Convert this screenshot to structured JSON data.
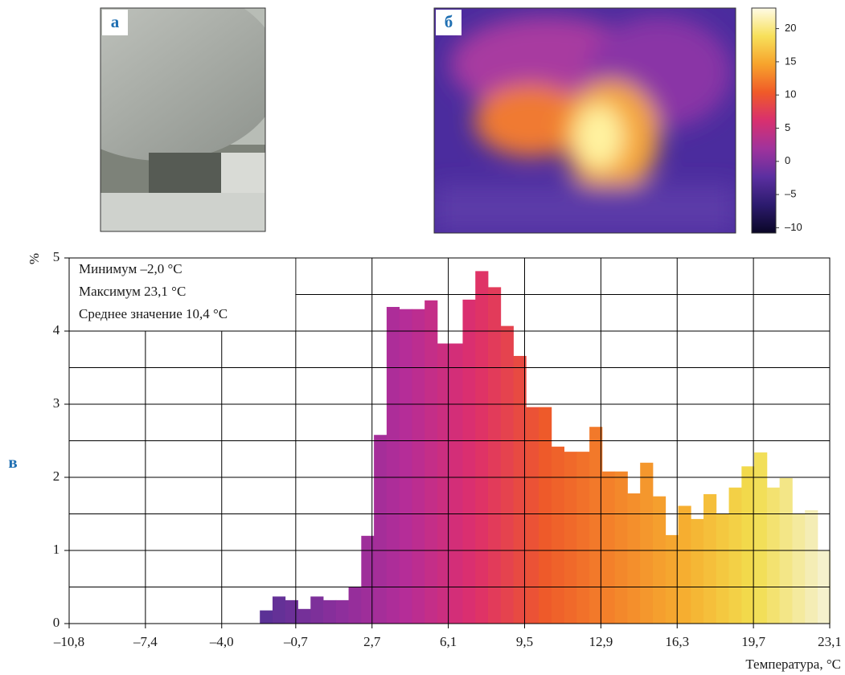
{
  "panel_labels": [
    "а",
    "б",
    "в"
  ],
  "colorbar": {
    "lim": [
      -10.8,
      23.1
    ],
    "ticks": [
      20,
      15,
      10,
      5,
      0,
      {
        "value": -5,
        "label": "–5"
      },
      {
        "value": -10,
        "label": "–10"
      }
    ],
    "colors": [
      "#0a0626",
      "#2c1b6e",
      "#5b2fa0",
      "#a0339c",
      "#d8306f",
      "#f05a28",
      "#f7a32c",
      "#f7e05a",
      "#fffbe6"
    ]
  },
  "chart_data": {
    "type": "histogram",
    "ylabel": "%",
    "xlabel": "Температура, °C",
    "annotations": [
      "Минимум –2,0 °C",
      "Максимум 23,1 °C",
      "Среднее значение 10,4 °C"
    ],
    "bins": [
      -2.3,
      -1.735,
      -1.17,
      -0.605,
      -0.04,
      0.525,
      1.09,
      1.655,
      2.22,
      2.785,
      3.35,
      3.915,
      4.48,
      5.045,
      5.61,
      6.175,
      6.74,
      7.305,
      7.87,
      8.435,
      9.0,
      9.565,
      10.13,
      10.695,
      11.26,
      11.825,
      12.39,
      12.955,
      13.52,
      14.085,
      14.65,
      15.215,
      15.78,
      16.345,
      16.91,
      17.475,
      18.04,
      18.605,
      19.17,
      19.735,
      20.3,
      20.865,
      21.43,
      21.995,
      22.56,
      23.125
    ],
    "values": [
      0.18,
      0.37,
      0.32,
      0.2,
      0.37,
      0.32,
      0.32,
      0.5,
      1.2,
      2.58,
      4.33,
      4.3,
      4.3,
      4.42,
      3.83,
      3.83,
      4.43,
      4.82,
      4.6,
      4.07,
      3.66,
      2.96,
      2.96,
      2.42,
      2.35,
      2.35,
      2.69,
      2.08,
      2.08,
      1.78,
      2.2,
      1.74,
      1.21,
      1.61,
      1.43,
      1.77,
      1.5,
      1.86,
      2.15,
      2.34,
      1.86,
      1.99,
      1.5,
      1.55,
      1.0
    ],
    "colormap": [
      "#5b3196",
      "#8a2f9c",
      "#b52d98",
      "#de2f6c",
      "#ee5a2a",
      "#f3842a",
      "#f6ae30",
      "#f2dd4e",
      "#f5f1cc"
    ],
    "xlim": [
      -10.8,
      23.1
    ],
    "ylim": [
      0,
      5
    ],
    "xticks": [
      {
        "value": -10.8,
        "label": "–10,8"
      },
      {
        "value": -7.4,
        "label": "–7,4"
      },
      {
        "value": -4.0,
        "label": "–4,0"
      },
      {
        "value": -0.7,
        "label": "–0,7"
      },
      {
        "value": 2.7,
        "label": "2,7"
      },
      {
        "value": 6.1,
        "label": "6,1"
      },
      {
        "value": 9.5,
        "label": "9,5"
      },
      {
        "value": 12.9,
        "label": "12,9"
      },
      {
        "value": 16.3,
        "label": "16,3"
      },
      {
        "value": 19.7,
        "label": "19,7"
      },
      {
        "value": 23.1,
        "label": "23,1"
      }
    ],
    "yticks": [
      0,
      1,
      2,
      3,
      4,
      5
    ],
    "y_minor_grid": [
      0.5,
      1.5,
      2.5,
      3.5,
      4.5
    ],
    "grid": true
  }
}
